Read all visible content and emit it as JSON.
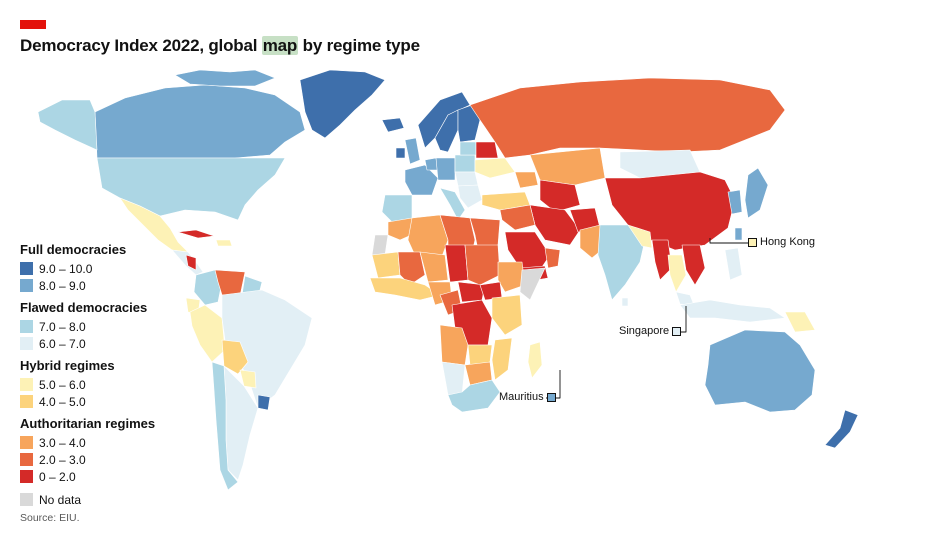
{
  "title_before": "Democracy Index 2022, global ",
  "title_highlight": "map",
  "title_after": " by regime type",
  "source": "Source: EIU.",
  "legend": {
    "groups": [
      {
        "title": "Full democracies",
        "items": [
          {
            "label": "9.0 – 10.0",
            "color": "#3e6fab"
          },
          {
            "label": "8.0 – 9.0",
            "color": "#76a9cf"
          }
        ]
      },
      {
        "title": "Flawed democracies",
        "items": [
          {
            "label": "7.0 – 8.0",
            "color": "#acd6e4"
          },
          {
            "label": "6.0 – 7.0",
            "color": "#e2eff5"
          }
        ]
      },
      {
        "title": "Hybrid regimes",
        "items": [
          {
            "label": "5.0 – 6.0",
            "color": "#fdf2b6"
          },
          {
            "label": "4.0 – 5.0",
            "color": "#fcd37c"
          }
        ]
      },
      {
        "title": "Authoritarian regimes",
        "items": [
          {
            "label": "3.0 – 4.0",
            "color": "#f7a55c"
          },
          {
            "label": "2.0 – 3.0",
            "color": "#e8683f"
          },
          {
            "label": "0 – 2.0",
            "color": "#d42a28"
          }
        ]
      }
    ],
    "no_data": {
      "label": "No data",
      "color": "#d9d9d9"
    }
  },
  "callouts": {
    "hong_kong": {
      "label": "Hong Kong",
      "color": "#fdf2b6"
    },
    "singapore": {
      "label": "Singapore",
      "color": "#e2eff5"
    },
    "mauritius": {
      "label": "Mauritius",
      "color": "#76a9cf"
    }
  }
}
